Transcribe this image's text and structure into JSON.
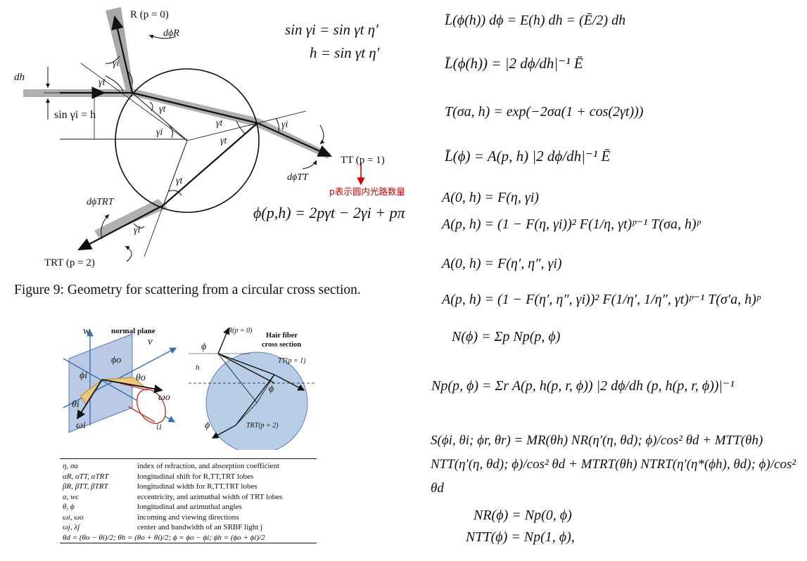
{
  "figure9": {
    "caption": "Figure 9: Geometry for scattering from a circular cross section.",
    "labels": {
      "R": "R (p = 0)",
      "dphiR": "dϕR",
      "dh": "dh",
      "sin_h": "sin γi = h",
      "TT": "TT (p = 1)",
      "dphiTT": "dϕTT",
      "TRT": "TRT (p = 2)",
      "dphiTRT": "dϕTRT",
      "gamma_i": "γi",
      "gamma_t": "γt"
    },
    "annotation": "p表示圆内光路数量",
    "eq1": "sin γi = sin γt η′",
    "eq2": "h = sin γt η′",
    "eq3": "ϕ(p,h) = 2pγt − 2γi + pπ"
  },
  "diagram2": {
    "normal_plane": "normal plane",
    "w": "w",
    "v": "v",
    "u": "u",
    "phi_o": "ϕo",
    "phi_i": "ϕi",
    "theta_o": "θo",
    "theta_i": "θi",
    "omega_o": "ωo",
    "omega_i": "ωi",
    "hair_title_1": "Hair fiber",
    "hair_title_2": "cross section",
    "R": "R(p = 0)",
    "TT": "TT(p = 1)",
    "TRT": "TRT(p = 2)",
    "h": "h",
    "phi": "ϕ"
  },
  "legend_table": {
    "rows": [
      {
        "sym": "η, σa",
        "desc": "index of refraction, and absorption coefficient"
      },
      {
        "sym": "αR, αTT, αTRT",
        "desc": "longitudinal shift for R,TT,TRT lobes"
      },
      {
        "sym": "βR, βTT, βTRT",
        "desc": "longitudinal width for R,TT,TRT lobes"
      },
      {
        "sym": "a, wc",
        "desc": "eccentricity, and azimuthal width of TRT lobes"
      },
      {
        "sym": "θ, ϕ",
        "desc": "longitudinal and azimuthal angles"
      },
      {
        "sym": "ωi, ωo",
        "desc": "incoming and viewing directions"
      },
      {
        "sym": "ωj, λj",
        "desc": "center and bandwidth of an SRBF light j"
      }
    ],
    "footer": "θd = (θo − θi)/2; θh = (θo + θi)/2; ϕ = ϕo − ϕi; ϕh = (ϕo + ϕi)/2"
  },
  "equations": [
    "L̄(ϕ(h)) dϕ = E(h) dh = (Ē/2) dh",
    "L̄(ϕ(h)) = |2 dϕ/dh|⁻¹ Ē",
    "T(σa, h) = exp(−2σa(1 + cos(2γt)))",
    "L̄(ϕ) = A(p, h) |2 dϕ/dh|⁻¹ Ē",
    "A(0, h) = F(η, γi)",
    "A(p, h) = (1 − F(η, γi))² F(1/η, γt)ᵖ⁻¹ T(σa, h)ᵖ",
    "A(0, h) = F(η′, η″, γi)",
    "A(p, h) = (1 − F(η′, η″, γi))² F(1/η′, 1/η″, γt)ᵖ⁻¹ T(σ′a, h)ᵖ",
    "N(ϕ) = Σp Np(p, ϕ)",
    "Np(p, ϕ) = Σr A(p, h(p, r, ϕ)) |2 dϕ/dh (p, h(p, r, ϕ))|⁻¹",
    "S(ϕi, θi; ϕr, θr) = MR(θh) NR(η′(η, θd); ϕ)/cos² θd + MTT(θh) NTT(η′(η, θd); ϕ)/cos² θd + MTRT(θh) NTRT(η′(η*(ϕh), θd); ϕ)/cos² θd",
    "NR(ϕ) = Np(0, ϕ)",
    "NTT(ϕ) = Np(1, ϕ),"
  ]
}
